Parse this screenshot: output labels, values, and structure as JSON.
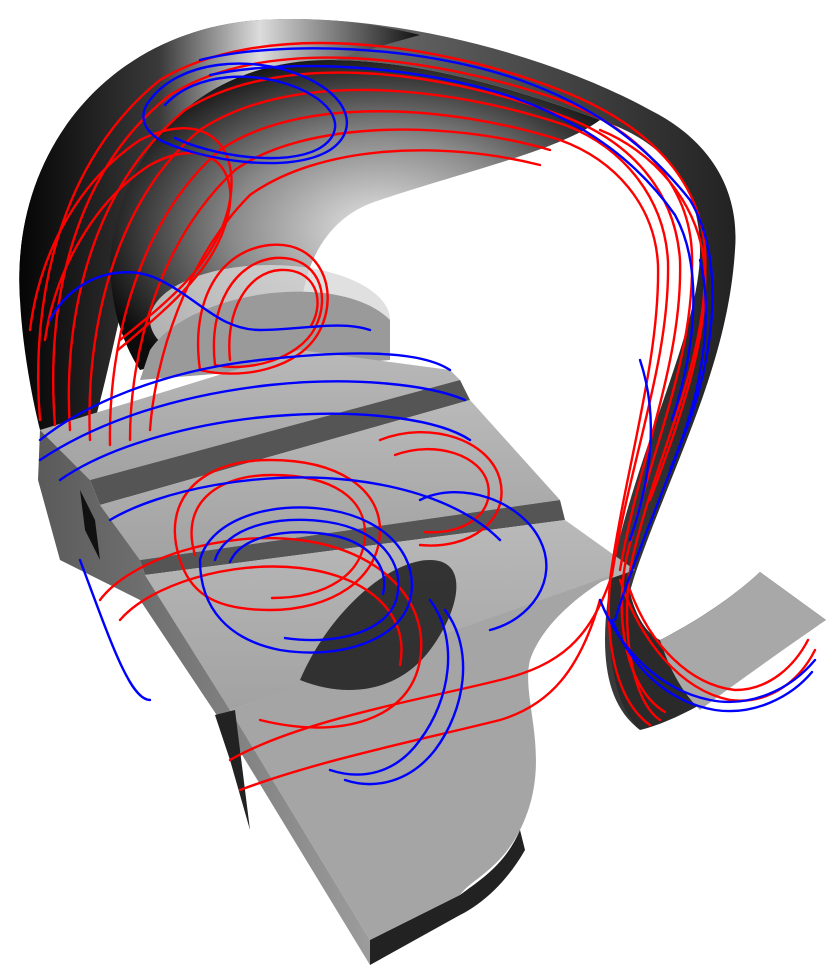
{
  "scene": {
    "background": "#ffffff",
    "surface_light": "#c8c8c8",
    "surface_mid": "#9a9a9a",
    "surface_dark": "#1a1a1a",
    "stream_colors": {
      "red": "#ff0000",
      "blue": "#0000ff"
    }
  }
}
